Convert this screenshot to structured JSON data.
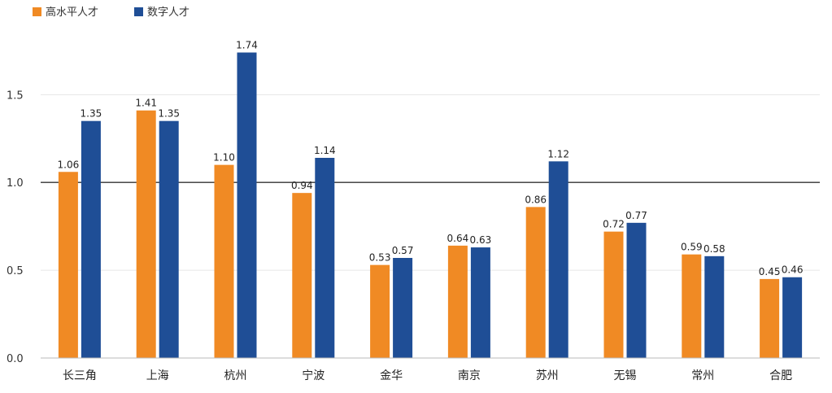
{
  "chart_data": {
    "type": "bar",
    "title": "",
    "xlabel": "",
    "ylabel": "",
    "ylim": [
      0,
      1.9
    ],
    "y_ticks": [
      "0.0",
      "0.5",
      "1.0",
      "1.5"
    ],
    "grid": true,
    "reference_line": 1.0,
    "legend_position": "top-left",
    "categories": [
      "长三角",
      "上海",
      "杭州",
      "宁波",
      "金华",
      "南京",
      "苏州",
      "无锡",
      "常州",
      "合肥"
    ],
    "series": [
      {
        "name": "高水平人才",
        "color": "#f08a24",
        "values": [
          1.06,
          1.41,
          1.1,
          0.94,
          0.53,
          0.64,
          0.86,
          0.72,
          0.59,
          0.45
        ],
        "labels": [
          "1.06",
          "1.41",
          "1.10",
          "0.94",
          "0.53",
          "0.64",
          "0.86",
          "0.72",
          "0.59",
          "0.45"
        ]
      },
      {
        "name": "数字人才",
        "color": "#1f4e96",
        "values": [
          1.35,
          1.35,
          1.74,
          1.14,
          0.57,
          0.63,
          1.12,
          0.77,
          0.58,
          0.46
        ],
        "labels": [
          "1.35",
          "1.35",
          "1.74",
          "1.14",
          "0.57",
          "0.63",
          "1.12",
          "0.77",
          "0.58",
          "0.46"
        ]
      }
    ]
  }
}
